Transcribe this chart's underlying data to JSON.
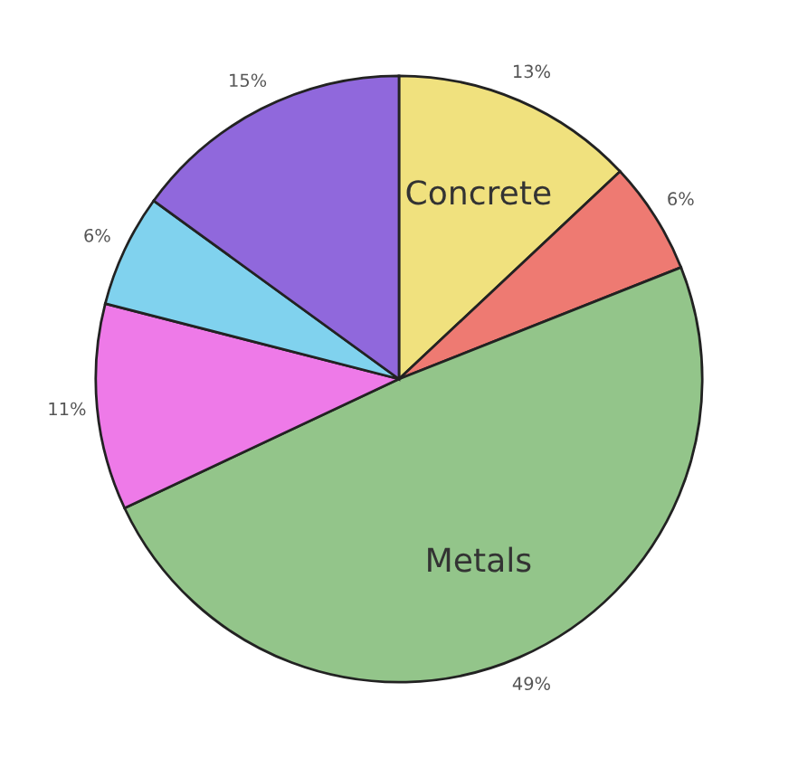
{
  "chart_data": {
    "type": "pie",
    "categories": [
      "Concrete",
      null,
      "Metals",
      null,
      null,
      null
    ],
    "values": [
      13,
      6,
      49,
      11,
      6,
      15
    ],
    "value_labels": [
      "13%",
      "6%",
      "49%",
      "11%",
      "6%",
      "15%"
    ],
    "colors": [
      "#f0e17e",
      "#ee7a72",
      "#93c58a",
      "#ee7ae8",
      "#80d2ee",
      "#9068dc"
    ]
  }
}
